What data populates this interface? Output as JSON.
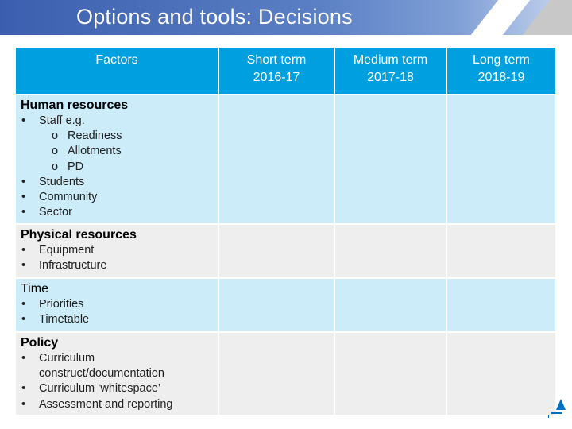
{
  "slide": {
    "title": "Options and tools: Decisions"
  },
  "table": {
    "headers": {
      "factors": "Factors",
      "short_term": [
        "Short term",
        "2016-17"
      ],
      "medium_term": [
        "Medium term",
        "2017-18"
      ],
      "long_term": [
        "Long term",
        "2018-19"
      ]
    },
    "rows": [
      {
        "heading": "Human resources",
        "items": [
          {
            "text": "Staff e.g.",
            "sub": [
              "Readiness",
              "Allotments",
              "PD"
            ]
          },
          {
            "text": "Students"
          },
          {
            "text": "Community"
          },
          {
            "text": "Sector"
          }
        ]
      },
      {
        "heading": "Physical resources",
        "items": [
          {
            "text": "Equipment"
          },
          {
            "text": "Infrastructure"
          }
        ]
      },
      {
        "heading": "Time",
        "items": [
          {
            "text": "Priorities"
          },
          {
            "text": "Timetable"
          }
        ]
      },
      {
        "heading": "Policy",
        "items": [
          {
            "text": "Curriculum construct/documentation"
          },
          {
            "text": "Curriculum ‘whitespace’"
          },
          {
            "text": "Assessment and reporting"
          }
        ]
      }
    ],
    "bullet_glyph": "•",
    "sub_bullet_glyph": "o"
  },
  "colors": {
    "title_bar": "#3b5fae",
    "header_cell": "#00a0e0",
    "row_light_blue": "#ccecfa",
    "row_light_grey": "#eeeeee",
    "logo_partial": "#0070c0"
  }
}
